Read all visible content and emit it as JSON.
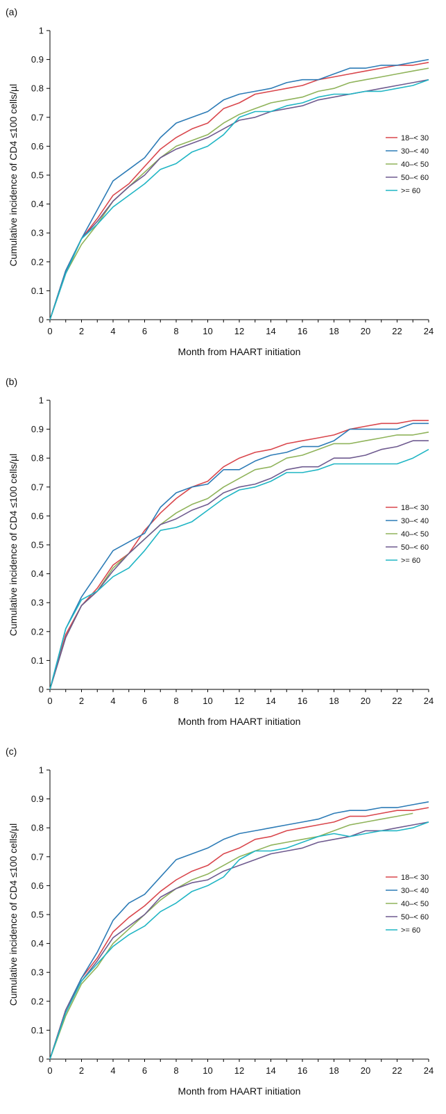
{
  "chart_data": [
    {
      "panel_label": "(a)",
      "type": "line",
      "xlabel": "Month from HAART initiation",
      "ylabel": "Cumulative incidence of CD4 ≤100 cells/µl",
      "xlim": [
        0,
        24
      ],
      "ylim": [
        0,
        1
      ],
      "x_ticks": [
        "0",
        "2",
        "4",
        "6",
        "8",
        "10",
        "12",
        "14",
        "16",
        "18",
        "20",
        "22",
        "24"
      ],
      "y_ticks": [
        "0",
        "0.1",
        "0.2",
        "0.3",
        "0.4",
        "0.5",
        "0.6",
        "0.7",
        "0.8",
        "0.9",
        "1"
      ],
      "legend_position": "right",
      "grid": false,
      "x": [
        0,
        1,
        2,
        3,
        4,
        5,
        6,
        7,
        8,
        9,
        10,
        11,
        12,
        13,
        14,
        15,
        16,
        17,
        18,
        19,
        20,
        21,
        22,
        23,
        24
      ],
      "series": [
        {
          "name": "18–< 30",
          "color": "#d9464c",
          "values": [
            0,
            0.17,
            0.28,
            0.35,
            0.43,
            0.47,
            0.53,
            0.59,
            0.63,
            0.66,
            0.68,
            0.73,
            0.75,
            0.78,
            0.79,
            0.8,
            0.81,
            0.83,
            0.84,
            0.85,
            0.86,
            0.87,
            0.88,
            0.88,
            0.89
          ]
        },
        {
          "name": "30–< 40",
          "color": "#2c7bb6",
          "values": [
            0,
            0.17,
            0.28,
            0.38,
            0.48,
            0.52,
            0.56,
            0.63,
            0.68,
            0.7,
            0.72,
            0.76,
            0.78,
            0.79,
            0.8,
            0.82,
            0.83,
            0.83,
            0.85,
            0.87,
            0.87,
            0.88,
            0.88,
            0.89,
            0.9
          ]
        },
        {
          "name": "40–< 50",
          "color": "#8fb35a",
          "values": [
            0,
            0.16,
            0.26,
            0.33,
            0.41,
            0.46,
            0.51,
            0.56,
            0.6,
            0.62,
            0.64,
            0.68,
            0.71,
            0.73,
            0.75,
            0.76,
            0.77,
            0.79,
            0.8,
            0.82,
            0.83,
            0.84,
            0.85,
            0.86,
            0.87
          ]
        },
        {
          "name": "50–< 60",
          "color": "#6e5a8f",
          "values": [
            0,
            0.16,
            0.28,
            0.34,
            0.41,
            0.46,
            0.5,
            0.56,
            0.59,
            0.61,
            0.63,
            0.66,
            0.69,
            0.7,
            0.72,
            0.73,
            0.74,
            0.76,
            0.77,
            0.78,
            0.79,
            0.8,
            0.81,
            0.82,
            0.83
          ]
        },
        {
          "name": ">= 60",
          "color": "#1fb5c4",
          "values": [
            0,
            0.16,
            0.28,
            0.33,
            0.39,
            0.43,
            0.47,
            0.52,
            0.54,
            0.58,
            0.6,
            0.64,
            0.7,
            0.72,
            0.72,
            0.74,
            0.75,
            0.77,
            0.78,
            0.78,
            0.79,
            0.79,
            0.8,
            0.81,
            0.83
          ]
        }
      ]
    },
    {
      "panel_label": "(b)",
      "type": "line",
      "xlabel": "Month from HAART initiation",
      "ylabel": "Cumulative incidence of CD4 ≤100 cells/µl",
      "xlim": [
        0,
        24
      ],
      "ylim": [
        0,
        1
      ],
      "x_ticks": [
        "0",
        "2",
        "4",
        "6",
        "8",
        "10",
        "12",
        "14",
        "16",
        "18",
        "20",
        "22",
        "24"
      ],
      "y_ticks": [
        "0",
        "0.1",
        "0.2",
        "0.3",
        "0.4",
        "0.5",
        "0.6",
        "0.7",
        "0.8",
        "0.9",
        "1"
      ],
      "legend_position": "right",
      "grid": false,
      "x": [
        0,
        1,
        2,
        3,
        4,
        5,
        6,
        7,
        8,
        9,
        10,
        11,
        12,
        13,
        14,
        15,
        16,
        17,
        18,
        19,
        20,
        21,
        22,
        23,
        24
      ],
      "series": [
        {
          "name": "18–< 30",
          "color": "#d9464c",
          "values": [
            0,
            0.19,
            0.29,
            0.35,
            0.43,
            0.47,
            0.55,
            0.61,
            0.66,
            0.7,
            0.72,
            0.77,
            0.8,
            0.82,
            0.83,
            0.85,
            0.86,
            0.87,
            0.88,
            0.9,
            0.91,
            0.92,
            0.92,
            0.93,
            0.93
          ]
        },
        {
          "name": "30–< 40",
          "color": "#2c7bb6",
          "values": [
            0,
            0.21,
            0.32,
            0.4,
            0.48,
            0.51,
            0.54,
            0.63,
            0.68,
            0.7,
            0.71,
            0.76,
            0.76,
            0.79,
            0.81,
            0.82,
            0.84,
            0.84,
            0.86,
            0.9,
            0.9,
            0.9,
            0.9,
            0.92,
            0.92
          ]
        },
        {
          "name": "40–< 50",
          "color": "#8fb35a",
          "values": [
            0,
            0.18,
            0.29,
            0.34,
            0.42,
            0.47,
            0.52,
            0.57,
            0.61,
            0.64,
            0.66,
            0.7,
            0.73,
            0.76,
            0.77,
            0.8,
            0.81,
            0.83,
            0.85,
            0.85,
            0.86,
            0.87,
            0.88,
            0.88,
            0.89
          ]
        },
        {
          "name": "50–< 60",
          "color": "#6e5a8f",
          "values": [
            0,
            0.18,
            0.29,
            0.34,
            0.41,
            0.47,
            0.52,
            0.57,
            0.59,
            0.62,
            0.64,
            0.68,
            0.7,
            0.71,
            0.73,
            0.76,
            0.77,
            0.77,
            0.8,
            0.8,
            0.81,
            0.83,
            0.84,
            0.86,
            0.86
          ]
        },
        {
          "name": ">= 60",
          "color": "#1fb5c4",
          "values": [
            0,
            0.21,
            0.31,
            0.34,
            0.39,
            0.42,
            0.48,
            0.55,
            0.56,
            0.58,
            0.62,
            0.66,
            0.69,
            0.7,
            0.72,
            0.75,
            0.75,
            0.76,
            0.78,
            0.78,
            0.78,
            0.78,
            0.78,
            0.8,
            0.83
          ]
        }
      ]
    },
    {
      "panel_label": "(c)",
      "type": "line",
      "xlabel": "Month from HAART initiation",
      "ylabel": "Cumulative incidence of CD4 ≤100 cells/µl",
      "xlim": [
        0,
        24
      ],
      "ylim": [
        0,
        1
      ],
      "x_ticks": [
        "0",
        "2",
        "4",
        "6",
        "8",
        "10",
        "12",
        "14",
        "16",
        "18",
        "20",
        "22",
        "24"
      ],
      "y_ticks": [
        "0",
        "0.1",
        "0.2",
        "0.3",
        "0.4",
        "0.5",
        "0.6",
        "0.7",
        "0.8",
        "0.9",
        "1"
      ],
      "legend_position": "right",
      "grid": false,
      "x": [
        0,
        1,
        2,
        3,
        4,
        5,
        6,
        7,
        8,
        9,
        10,
        11,
        12,
        13,
        14,
        15,
        16,
        17,
        18,
        19,
        20,
        21,
        22,
        23,
        24
      ],
      "series": [
        {
          "name": "18–< 30",
          "color": "#d9464c",
          "values": [
            0,
            0.17,
            0.28,
            0.35,
            0.44,
            0.49,
            0.53,
            0.58,
            0.62,
            0.65,
            0.67,
            0.71,
            0.73,
            0.76,
            0.77,
            0.79,
            0.8,
            0.81,
            0.82,
            0.84,
            0.84,
            0.85,
            0.86,
            0.86,
            0.87
          ]
        },
        {
          "name": "30–< 40",
          "color": "#2c7bb6",
          "values": [
            0,
            0.17,
            0.28,
            0.37,
            0.48,
            0.54,
            0.57,
            0.63,
            0.69,
            0.71,
            0.73,
            0.76,
            0.78,
            0.79,
            0.8,
            0.81,
            0.82,
            0.83,
            0.85,
            0.86,
            0.86,
            0.87,
            0.87,
            0.88,
            0.89
          ]
        },
        {
          "name": "40–< 50",
          "color": "#8fb35a",
          "values": [
            0,
            0.15,
            0.26,
            0.32,
            0.4,
            0.45,
            0.5,
            0.55,
            0.59,
            0.62,
            0.64,
            0.67,
            0.7,
            0.72,
            0.74,
            0.75,
            0.76,
            0.77,
            0.79,
            0.81,
            0.82,
            0.83,
            0.84,
            0.85,
            null
          ]
        },
        {
          "name": "50–< 60",
          "color": "#6e5a8f",
          "values": [
            0,
            0.17,
            0.27,
            0.34,
            0.42,
            0.46,
            0.5,
            0.56,
            0.59,
            0.61,
            0.62,
            0.65,
            0.67,
            0.69,
            0.71,
            0.72,
            0.73,
            0.75,
            0.76,
            0.77,
            0.79,
            0.79,
            0.8,
            0.81,
            0.82
          ]
        },
        {
          "name": ">= 60",
          "color": "#1fb5c4",
          "values": [
            0,
            0.16,
            0.27,
            0.33,
            0.39,
            0.43,
            0.46,
            0.51,
            0.54,
            0.58,
            0.6,
            0.63,
            0.69,
            0.72,
            0.72,
            0.73,
            0.75,
            0.77,
            0.78,
            0.77,
            0.78,
            0.79,
            0.79,
            0.8,
            0.82
          ]
        }
      ]
    }
  ]
}
